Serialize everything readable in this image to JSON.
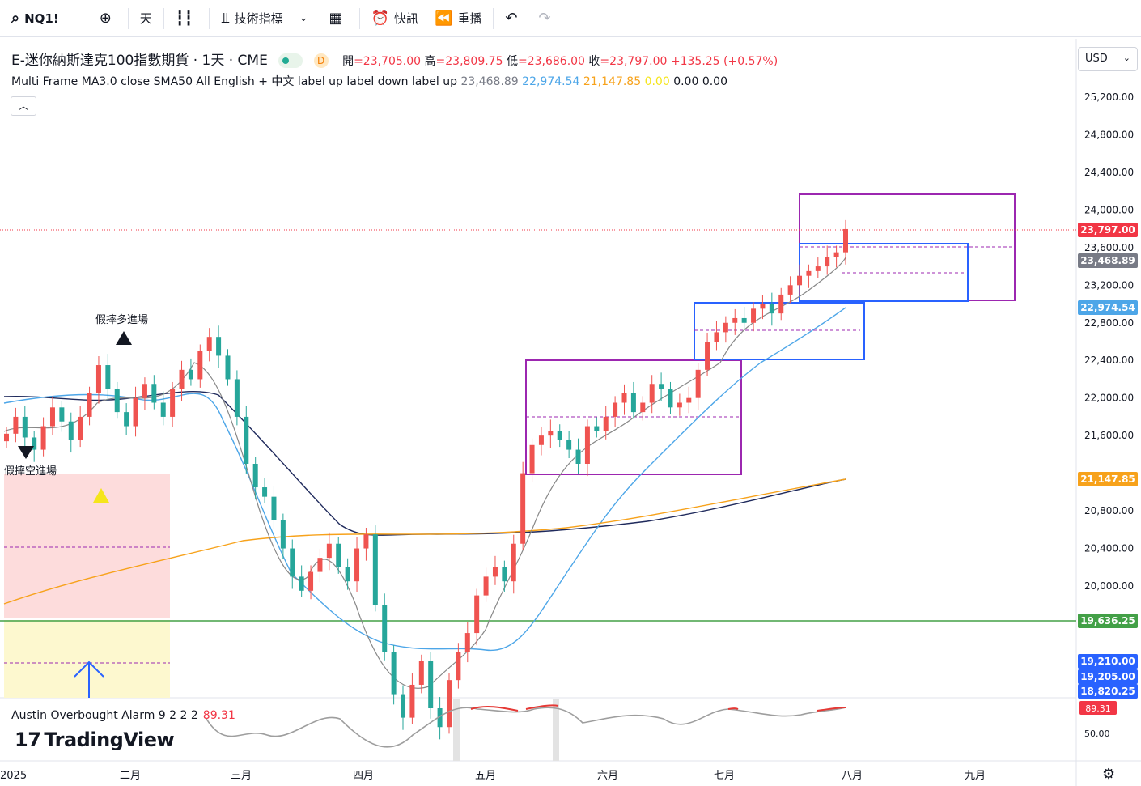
{
  "toolbar": {
    "symbol": "NQ1!",
    "interval": "天",
    "indicators_label": "技術指標",
    "alerts_label": "快訊",
    "replay_label": "重播"
  },
  "legend": {
    "title": "E-迷你納斯達克100指數期貨 · 1天 · CME",
    "status_badge": "D",
    "ohlc": {
      "open_label": "開",
      "open": "23,705.00",
      "high_label": "高",
      "high": "23,809.75",
      "low_label": "低",
      "low": "23,686.00",
      "close_label": "收",
      "close": "23,797.00",
      "change": "+135.25 (+0.57%)"
    },
    "indicator": {
      "name": "Multi Frame MA3.0 close SMA50 All English + 中文 label up label down label up",
      "values": [
        {
          "text": "23,468.89",
          "color": "#787b86"
        },
        {
          "text": "22,974.54",
          "color": "#4da6e8"
        },
        {
          "text": "21,147.85",
          "color": "#f7a21b"
        },
        {
          "text": "0.00",
          "color": "#f5e51b"
        },
        {
          "text": "0.00",
          "color": "#131722"
        },
        {
          "text": "0.00",
          "color": "#131722"
        }
      ]
    }
  },
  "currency": "USD",
  "oscillator": {
    "name": "Austin Overbought Alarm 9 2 2 2",
    "value": "89.31",
    "axis_label": "50.00"
  },
  "brand": "TradingView",
  "annotations": {
    "long_label": "假摔多進場",
    "short_label": "假摔空進場"
  },
  "chart_data": {
    "type": "candlestick",
    "y_axis_ticks": [
      25200,
      24800,
      24400,
      24000,
      23600,
      23200,
      22800,
      22400,
      22000,
      21600,
      20800,
      20400,
      20000
    ],
    "y_tick_labels": [
      "25,200.00",
      "24,800.00",
      "24,400.00",
      "24,000.00",
      "23,600.00",
      "23,200.00",
      "22,800.00",
      "22,400.00",
      "22,000.00",
      "21,600.00",
      "20,800.00",
      "20,400.00",
      "20,000.00"
    ],
    "x_axis_labels": [
      "2025",
      "二月",
      "三月",
      "四月",
      "五月",
      "六月",
      "七月",
      "八月",
      "九月"
    ],
    "price_tags": [
      {
        "text": "23,797.00",
        "value": 23797,
        "color": "#f23645"
      },
      {
        "text": "23,468.89",
        "value": 23468.89,
        "color": "#787b86"
      },
      {
        "text": "22,974.54",
        "value": 22974.54,
        "color": "#4da6e8"
      },
      {
        "text": "21,147.85",
        "value": 21147.85,
        "color": "#f7a21b"
      },
      {
        "text": "19,636.25",
        "value": 19636.25,
        "color": "#43a047"
      },
      {
        "text": "19,210.00",
        "value": 19210,
        "color": "#2962ff"
      },
      {
        "text": "19,205.00",
        "value": 19205,
        "color": "#2962ff"
      },
      {
        "text": "18,820.25",
        "value": 18820.25,
        "color": "#2962ff"
      }
    ],
    "horizontal_line": 19636.25,
    "series": [
      {
        "name": "close",
        "values": [
          21620,
          21800,
          21580,
          21450,
          21700,
          21900,
          21750,
          21550,
          21800,
          22050,
          22350,
          22100,
          21850,
          21700,
          22000,
          22150,
          21950,
          21800,
          22100,
          22300,
          22200,
          22500,
          22650,
          22450,
          22200,
          21800,
          21300,
          21050,
          20950,
          20700,
          20400,
          20100,
          19950,
          20150,
          20300,
          20450,
          20200,
          20050,
          20400,
          20550,
          19800,
          19300,
          18850,
          18600,
          18950,
          19200,
          18700,
          18500,
          19000,
          19300,
          19500,
          19900,
          20100,
          20200,
          20050,
          20450,
          21200,
          21500,
          21600,
          21650,
          21550,
          21450,
          21300,
          21700,
          21650,
          21800,
          21950,
          22050,
          21850,
          21950,
          22150,
          22100,
          21900,
          21950,
          22000,
          22300,
          22600,
          22700,
          22800,
          22850,
          22800,
          22950,
          23000,
          22900,
          23100,
          23200,
          23300,
          23350,
          23400,
          23500,
          23550,
          23797
        ]
      }
    ]
  }
}
